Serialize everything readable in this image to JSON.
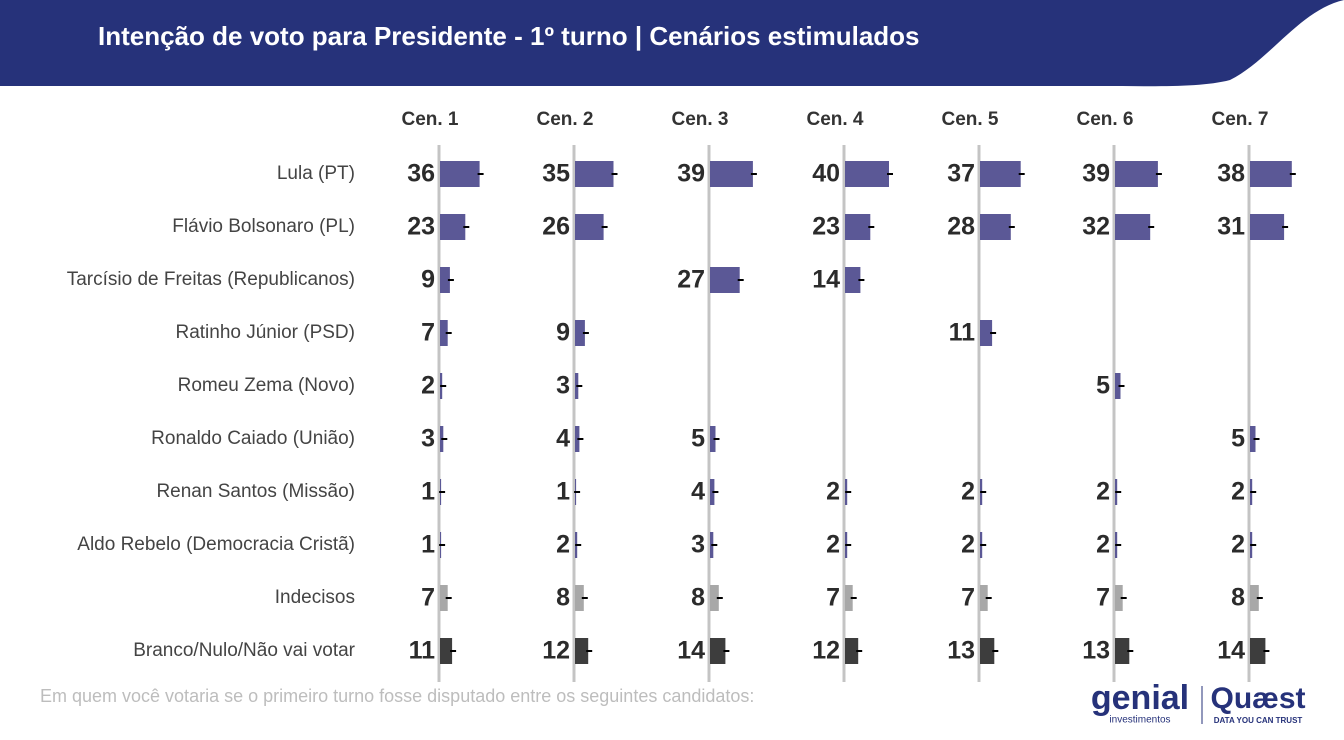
{
  "chart_data": {
    "type": "bar",
    "title": "Intenção de voto para Presidente - 1º turno | Cenários estimulados",
    "subtitle": "Em quem você votaria se o primeiro turno fosse disputado entre os seguintes candidatos:",
    "categories": [
      "Lula (PT)",
      "Flávio Bolsonaro (PL)",
      "Tarcísio de Freitas (Republicanos)",
      "Ratinho Júnior (PSD)",
      "Romeu Zema (Novo)",
      "Ronaldo Caiado (União)",
      "Renan Santos (Missão)",
      "Aldo Rebelo (Democracia Cristã)",
      "Indecisos",
      "Branco/Nulo/Não vai votar"
    ],
    "category_colors": [
      "#5b5896",
      "#5b5896",
      "#5b5896",
      "#5b5896",
      "#5b5896",
      "#5b5896",
      "#5b5896",
      "#5b5896",
      "#a8a8a8",
      "#3d3d3d"
    ],
    "series": [
      {
        "name": "Cen. 1",
        "values": [
          36,
          23,
          9,
          7,
          2,
          3,
          1,
          1,
          7,
          11
        ]
      },
      {
        "name": "Cen. 2",
        "values": [
          35,
          26,
          null,
          9,
          3,
          4,
          1,
          2,
          8,
          12
        ]
      },
      {
        "name": "Cen. 3",
        "values": [
          39,
          null,
          27,
          null,
          null,
          5,
          4,
          3,
          8,
          14
        ]
      },
      {
        "name": "Cen. 4",
        "values": [
          40,
          23,
          14,
          null,
          null,
          null,
          2,
          2,
          7,
          12
        ]
      },
      {
        "name": "Cen. 5",
        "values": [
          37,
          28,
          null,
          11,
          null,
          null,
          2,
          2,
          7,
          13
        ]
      },
      {
        "name": "Cen. 6",
        "values": [
          39,
          32,
          null,
          null,
          5,
          null,
          2,
          2,
          7,
          13
        ]
      },
      {
        "name": "Cen. 7",
        "values": [
          38,
          31,
          null,
          null,
          null,
          5,
          2,
          2,
          8,
          14
        ]
      }
    ],
    "xlim": [
      0,
      40
    ]
  },
  "logos": {
    "genial": "genial",
    "genial_sub": "investimentos",
    "quaest": "Quæst",
    "quaest_sub": "DATA YOU CAN TRUST"
  }
}
